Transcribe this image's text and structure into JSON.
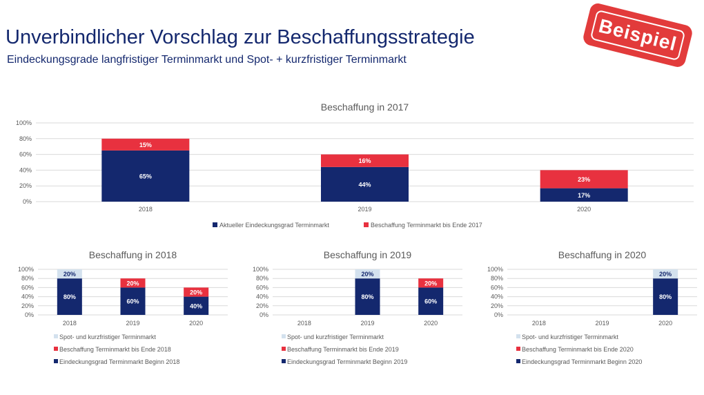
{
  "page": {
    "title": "Unverbindlicher Vorschlag zur Beschaffungsstrategie",
    "subtitle": "Eindeckungsgrade langfristiger Terminmarkt und Spot- + kurzfristiger Terminmarkt",
    "stamp": "Beispiel"
  },
  "colors": {
    "navy": "#14286e",
    "red": "#e8313f",
    "light": "#d3e1ee",
    "grid": "#d9d9d9",
    "text": "#595959"
  },
  "chart_data": [
    {
      "type": "bar",
      "stacked": true,
      "title": "Beschaffung in 2017",
      "categories": [
        "2018",
        "2019",
        "2020"
      ],
      "yticks": [
        "0%",
        "20%",
        "40%",
        "60%",
        "80%",
        "100%"
      ],
      "ylim": [
        0,
        100
      ],
      "legend_position": "bottom",
      "series": [
        {
          "name": "Aktueller Eindeckungsgrad Terminmarkt",
          "color": "navy",
          "values": [
            65,
            44,
            17
          ],
          "labels": [
            "65%",
            "44%",
            "17%"
          ]
        },
        {
          "name": "Beschaffung Terminmarkt bis Ende 2017",
          "color": "red",
          "values": [
            15,
            16,
            23
          ],
          "labels": [
            "15%",
            "16%",
            "23%"
          ]
        }
      ]
    },
    {
      "type": "bar",
      "stacked": true,
      "title": "Beschaffung in 2018",
      "categories": [
        "2018",
        "2019",
        "2020"
      ],
      "yticks": [
        "0%",
        "20%",
        "40%",
        "60%",
        "80%",
        "100%"
      ],
      "ylim": [
        0,
        100
      ],
      "legend_position": "bottom",
      "series": [
        {
          "name": "Eindeckungsgrad Terminmarkt Beginn 2018",
          "color": "navy",
          "values": [
            80,
            60,
            40
          ],
          "labels": [
            "80%",
            "60%",
            "40%"
          ]
        },
        {
          "name": "Beschaffung Terminmarkt bis Ende 2018",
          "color": "red",
          "values": [
            0,
            20,
            20
          ],
          "labels": [
            "",
            "20%",
            "20%"
          ]
        },
        {
          "name": "Spot- und kurzfristiger Terminmarkt",
          "color": "light",
          "values": [
            20,
            0,
            0
          ],
          "labels": [
            "20%",
            "",
            ""
          ]
        }
      ]
    },
    {
      "type": "bar",
      "stacked": true,
      "title": "Beschaffung in 2019",
      "categories": [
        "2018",
        "2019",
        "2020"
      ],
      "yticks": [
        "0%",
        "20%",
        "40%",
        "60%",
        "80%",
        "100%"
      ],
      "ylim": [
        0,
        100
      ],
      "legend_position": "bottom",
      "series": [
        {
          "name": "Eindeckungsgrad Terminmarkt Beginn 2019",
          "color": "navy",
          "values": [
            0,
            80,
            60
          ],
          "labels": [
            "",
            "80%",
            "60%"
          ]
        },
        {
          "name": "Beschaffung Terminmarkt bis Ende 2019",
          "color": "red",
          "values": [
            0,
            0,
            20
          ],
          "labels": [
            "",
            "",
            "20%"
          ]
        },
        {
          "name": "Spot- und kurzfristiger Terminmarkt",
          "color": "light",
          "values": [
            0,
            20,
            0
          ],
          "labels": [
            "",
            "20%",
            ""
          ]
        }
      ]
    },
    {
      "type": "bar",
      "stacked": true,
      "title": "Beschaffung in 2020",
      "categories": [
        "2018",
        "2019",
        "2020"
      ],
      "yticks": [
        "0%",
        "20%",
        "40%",
        "60%",
        "80%",
        "100%"
      ],
      "ylim": [
        0,
        100
      ],
      "legend_position": "bottom",
      "series": [
        {
          "name": "Eindeckungsgrad Terminmarkt Beginn 2020",
          "color": "navy",
          "values": [
            0,
            0,
            80
          ],
          "labels": [
            "",
            "",
            "80%"
          ]
        },
        {
          "name": "Beschaffung Terminmarkt bis Ende 2020",
          "color": "red",
          "values": [
            0,
            0,
            0
          ],
          "labels": [
            "",
            "",
            ""
          ]
        },
        {
          "name": "Spot- und kurzfristiger Terminmarkt",
          "color": "light",
          "values": [
            0,
            0,
            20
          ],
          "labels": [
            "",
            "",
            "20%"
          ]
        }
      ]
    }
  ]
}
